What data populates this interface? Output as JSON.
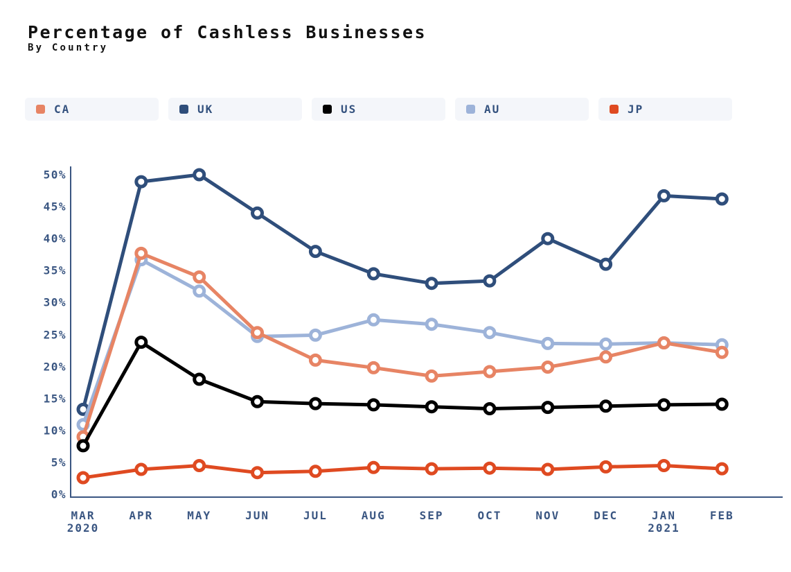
{
  "header": {
    "title": "Percentage of Cashless Businesses",
    "subtitle": "By Country"
  },
  "legend": {
    "items": [
      {
        "label": "CA",
        "color": "#E78464"
      },
      {
        "label": "UK",
        "color": "#2F4E7B"
      },
      {
        "label": "US",
        "color": "#000000"
      },
      {
        "label": "AU",
        "color": "#9DB3D9"
      },
      {
        "label": "JP",
        "color": "#DF4A21"
      }
    ]
  },
  "chart_data": {
    "type": "line",
    "title": "Percentage of Cashless Businesses",
    "subtitle": "By Country",
    "categories": [
      "MAR",
      "APR",
      "MAY",
      "JUN",
      "JUL",
      "AUG",
      "SEP",
      "OCT",
      "NOV",
      "DEC",
      "JAN",
      "FEB"
    ],
    "x_year_labels": [
      "2020",
      "",
      "",
      "",
      "",
      "",
      "",
      "",
      "",
      "",
      "2021",
      ""
    ],
    "y_ticks": [
      {
        "value": 0,
        "label": "0%"
      },
      {
        "value": 5,
        "label": "5%"
      },
      {
        "value": 10,
        "label": "10%"
      },
      {
        "value": 15,
        "label": "15%"
      },
      {
        "value": 20,
        "label": "20%"
      },
      {
        "value": 25,
        "label": "25%"
      },
      {
        "value": 30,
        "label": "30%"
      },
      {
        "value": 35,
        "label": "35%"
      },
      {
        "value": 40,
        "label": "40%"
      },
      {
        "value": 45,
        "label": "45%"
      },
      {
        "value": 50,
        "label": "50%"
      }
    ],
    "ylim": [
      0,
      50
    ],
    "grid": false,
    "legend_position": "top",
    "marker_style": "open-circle",
    "axis_color": "#3A5682",
    "label_color": "#3A5682",
    "series": [
      {
        "name": "CA",
        "color": "#E78464",
        "values": [
          9.0,
          37.7,
          34.0,
          25.3,
          21.0,
          19.8,
          18.5,
          19.2,
          19.9,
          21.5,
          23.7,
          22.2
        ]
      },
      {
        "name": "UK",
        "color": "#2F4E7B",
        "values": [
          13.3,
          48.9,
          50.0,
          44.0,
          38.0,
          34.5,
          33.0,
          33.4,
          40.0,
          36.0,
          46.7,
          46.2
        ]
      },
      {
        "name": "US",
        "color": "#000000",
        "values": [
          7.6,
          23.8,
          18.0,
          14.5,
          14.2,
          14.0,
          13.7,
          13.4,
          13.6,
          13.8,
          14.0,
          14.1
        ]
      },
      {
        "name": "AU",
        "color": "#9DB3D9",
        "values": [
          10.9,
          36.7,
          31.8,
          24.7,
          24.9,
          27.3,
          26.6,
          25.3,
          23.6,
          23.5,
          23.7,
          23.4
        ]
      },
      {
        "name": "JP",
        "color": "#DF4A21",
        "values": [
          2.6,
          3.9,
          4.5,
          3.4,
          3.6,
          4.2,
          4.0,
          4.1,
          3.9,
          4.3,
          4.5,
          4.0
        ]
      }
    ]
  }
}
